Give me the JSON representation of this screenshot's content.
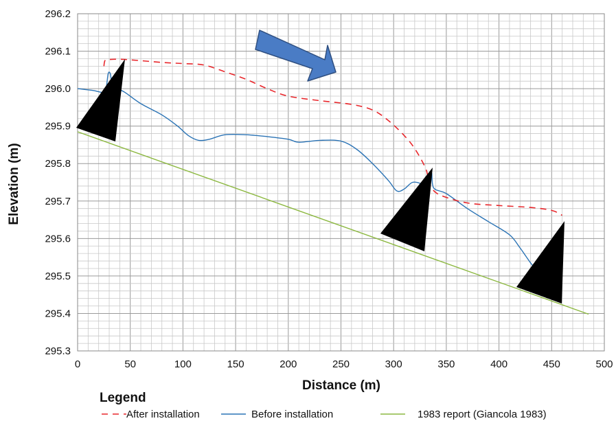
{
  "chart_data": {
    "type": "line",
    "title": "",
    "xlabel": "Distance (m)",
    "ylabel": "Elevation (m)",
    "xlim": [
      0,
      500
    ],
    "ylim": [
      295.3,
      296.2
    ],
    "x_ticks": [
      0,
      50,
      100,
      150,
      200,
      250,
      300,
      350,
      400,
      450,
      500
    ],
    "y_ticks": [
      295.3,
      295.4,
      295.5,
      295.6,
      295.7,
      295.8,
      295.9,
      296.0,
      296.1,
      296.2
    ],
    "x_tick_labels": [
      "0",
      "50",
      "100",
      "150",
      "200",
      "250",
      "300",
      "350",
      "400",
      "450",
      "500"
    ],
    "y_tick_labels": [
      "295.3",
      "295.4",
      "295.5",
      "295.6",
      "295.7",
      "295.8",
      "295.9",
      "296.0",
      "296.1",
      "296.2"
    ],
    "grid": true,
    "legend_title": "Legend",
    "legend_position": "bottom",
    "series": [
      {
        "name": "After installation",
        "color": "#e8262b",
        "style": "dashed",
        "points": [
          [
            25,
            296.06
          ],
          [
            26,
            296.075
          ],
          [
            30,
            296.078
          ],
          [
            45,
            296.078
          ],
          [
            80,
            296.07
          ],
          [
            100,
            296.067
          ],
          [
            120,
            296.063
          ],
          [
            140,
            296.045
          ],
          [
            160,
            296.025
          ],
          [
            180,
            296.0
          ],
          [
            200,
            295.98
          ],
          [
            230,
            295.968
          ],
          [
            260,
            295.958
          ],
          [
            280,
            295.943
          ],
          [
            295,
            295.915
          ],
          [
            310,
            295.875
          ],
          [
            320,
            295.84
          ],
          [
            330,
            295.79
          ],
          [
            333,
            295.76
          ],
          [
            336,
            295.735
          ],
          [
            345,
            295.715
          ],
          [
            370,
            295.695
          ],
          [
            400,
            295.688
          ],
          [
            430,
            295.683
          ],
          [
            450,
            295.675
          ],
          [
            460,
            295.662
          ]
        ]
      },
      {
        "name": "Before installation",
        "color": "#2a73b5",
        "style": "solid",
        "points": [
          [
            0,
            296.0
          ],
          [
            15,
            295.995
          ],
          [
            24,
            295.99
          ],
          [
            27,
            296.0
          ],
          [
            29,
            296.04
          ],
          [
            31,
            296.04
          ],
          [
            33,
            296.01
          ],
          [
            38,
            296.0
          ],
          [
            45,
            295.99
          ],
          [
            60,
            295.96
          ],
          [
            80,
            295.93
          ],
          [
            95,
            295.9
          ],
          [
            105,
            295.875
          ],
          [
            115,
            295.862
          ],
          [
            125,
            295.865
          ],
          [
            140,
            295.877
          ],
          [
            160,
            295.877
          ],
          [
            180,
            295.872
          ],
          [
            200,
            295.865
          ],
          [
            210,
            295.857
          ],
          [
            230,
            295.862
          ],
          [
            250,
            295.86
          ],
          [
            265,
            295.838
          ],
          [
            280,
            295.8
          ],
          [
            295,
            295.755
          ],
          [
            303,
            295.727
          ],
          [
            310,
            295.732
          ],
          [
            318,
            295.75
          ],
          [
            327,
            295.745
          ],
          [
            333,
            295.73
          ],
          [
            336,
            295.775
          ],
          [
            338,
            295.735
          ],
          [
            350,
            295.72
          ],
          [
            370,
            295.68
          ],
          [
            390,
            295.645
          ],
          [
            410,
            295.61
          ],
          [
            420,
            295.575
          ],
          [
            430,
            295.535
          ],
          [
            440,
            295.5
          ]
        ]
      },
      {
        "name": "1983 report (Giancola 1983)",
        "color": "#8cb840",
        "style": "solid",
        "points": [
          [
            0,
            295.885
          ],
          [
            485,
            295.398
          ]
        ]
      }
    ]
  },
  "annotations": {
    "arrow_color": "#4a7cc5",
    "arrow_outline": "#2f4f80",
    "triangle_color": "#000000"
  }
}
